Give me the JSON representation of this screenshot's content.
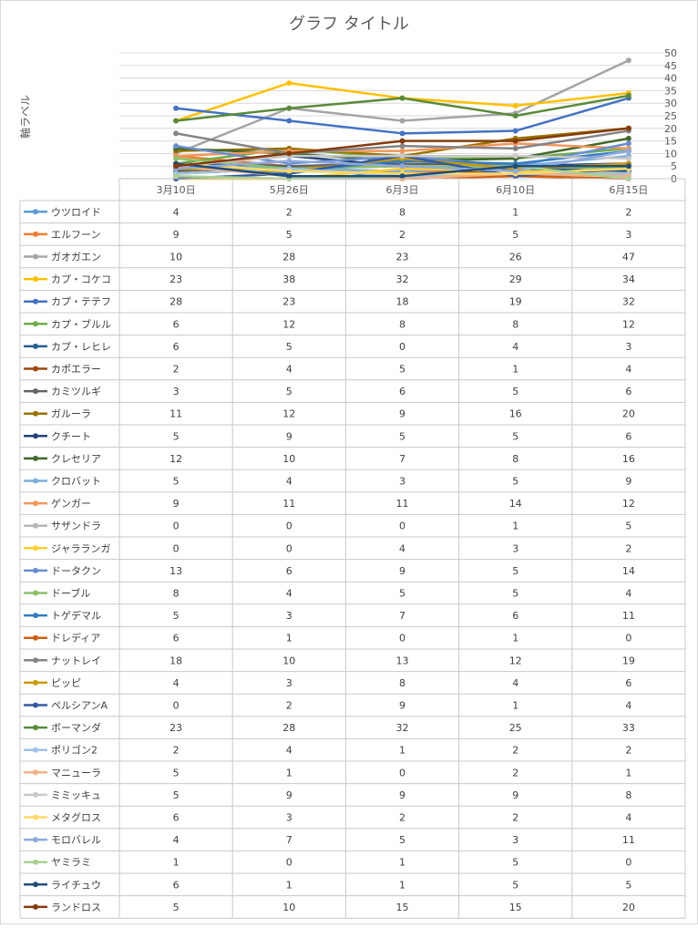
{
  "chart_data": {
    "type": "line",
    "title": "グラフ タイトル",
    "ylabel": "軸ラベル",
    "xlabel": "",
    "categories": [
      "3月10日",
      "5月26日",
      "6月3日",
      "6月10日",
      "6月15日"
    ],
    "ylim": [
      0,
      50
    ],
    "yticks": [
      0,
      5,
      10,
      15,
      20,
      25,
      30,
      35,
      40,
      45,
      50
    ],
    "grid": true,
    "legend": "data-table-below",
    "series": [
      {
        "name": "ウツロイド",
        "color": "#5B9BD5",
        "values": [
          4,
          2,
          8,
          1,
          2
        ]
      },
      {
        "name": "エルフーン",
        "color": "#ED7D31",
        "values": [
          9,
          5,
          2,
          5,
          3
        ]
      },
      {
        "name": "ガオガエン",
        "color": "#A5A5A5",
        "values": [
          10,
          28,
          23,
          26,
          47
        ]
      },
      {
        "name": "カプ・コケコ",
        "color": "#FFC000",
        "values": [
          23,
          38,
          32,
          29,
          34
        ]
      },
      {
        "name": "カプ・テテフ",
        "color": "#4472C4",
        "values": [
          28,
          23,
          18,
          19,
          32
        ]
      },
      {
        "name": "カプ・ブルル",
        "color": "#70AD47",
        "values": [
          6,
          12,
          8,
          8,
          12
        ]
      },
      {
        "name": "カプ・レヒレ",
        "color": "#255E91",
        "values": [
          6,
          5,
          0,
          4,
          3
        ]
      },
      {
        "name": "カポエラー",
        "color": "#9E480E",
        "values": [
          2,
          4,
          5,
          1,
          4
        ]
      },
      {
        "name": "カミツルギ",
        "color": "#636363",
        "values": [
          3,
          5,
          6,
          5,
          6
        ]
      },
      {
        "name": "ガルーラ",
        "color": "#997300",
        "values": [
          11,
          12,
          9,
          16,
          20
        ]
      },
      {
        "name": "クチート",
        "color": "#264478",
        "values": [
          5,
          9,
          5,
          5,
          6
        ]
      },
      {
        "name": "クレセリア",
        "color": "#43682B",
        "values": [
          12,
          10,
          7,
          8,
          16
        ]
      },
      {
        "name": "クロバット",
        "color": "#7CAFDD",
        "values": [
          5,
          4,
          3,
          5,
          9
        ]
      },
      {
        "name": "ゲンガー",
        "color": "#F1975A",
        "values": [
          9,
          11,
          11,
          14,
          12
        ]
      },
      {
        "name": "サザンドラ",
        "color": "#B7B7B7",
        "values": [
          0,
          0,
          0,
          1,
          5
        ]
      },
      {
        "name": "ジャラランガ",
        "color": "#FFCD33",
        "values": [
          0,
          0,
          4,
          3,
          2
        ]
      },
      {
        "name": "ドータクン",
        "color": "#698ED0",
        "values": [
          13,
          6,
          9,
          5,
          14
        ]
      },
      {
        "name": "ドーブル",
        "color": "#8CC168",
        "values": [
          8,
          4,
          5,
          5,
          4
        ]
      },
      {
        "name": "トゲデマル",
        "color": "#327DC2",
        "values": [
          5,
          3,
          7,
          6,
          11
        ]
      },
      {
        "name": "ドレディア",
        "color": "#D26012",
        "values": [
          6,
          1,
          0,
          1,
          0
        ]
      },
      {
        "name": "ナットレイ",
        "color": "#848484",
        "values": [
          18,
          10,
          13,
          12,
          19
        ]
      },
      {
        "name": "ピッピ",
        "color": "#CC9A00",
        "values": [
          4,
          3,
          8,
          4,
          6
        ]
      },
      {
        "name": "ペルシアンA",
        "color": "#335AA1",
        "values": [
          0,
          2,
          9,
          1,
          4
        ]
      },
      {
        "name": "ボーマンダ",
        "color": "#5A8A39",
        "values": [
          23,
          28,
          32,
          25,
          33
        ]
      },
      {
        "name": "ポリゴン2",
        "color": "#9DC3E6",
        "values": [
          2,
          4,
          1,
          2,
          2
        ]
      },
      {
        "name": "マニューラ",
        "color": "#F4B183",
        "values": [
          5,
          1,
          0,
          2,
          1
        ]
      },
      {
        "name": "ミミッキュ",
        "color": "#C9C9C9",
        "values": [
          5,
          9,
          9,
          9,
          8
        ]
      },
      {
        "name": "メタグロス",
        "color": "#FFD966",
        "values": [
          6,
          3,
          2,
          2,
          4
        ]
      },
      {
        "name": "モロバレル",
        "color": "#8FAADC",
        "values": [
          4,
          7,
          5,
          3,
          11
        ]
      },
      {
        "name": "ヤミラミ",
        "color": "#A9D18E",
        "values": [
          1,
          0,
          1,
          5,
          0
        ]
      },
      {
        "name": "ライチュウ",
        "color": "#1F4E79",
        "values": [
          6,
          1,
          1,
          5,
          5
        ]
      },
      {
        "name": "ランドロス",
        "color": "#843C0C",
        "values": [
          5,
          10,
          15,
          15,
          20
        ]
      }
    ]
  }
}
